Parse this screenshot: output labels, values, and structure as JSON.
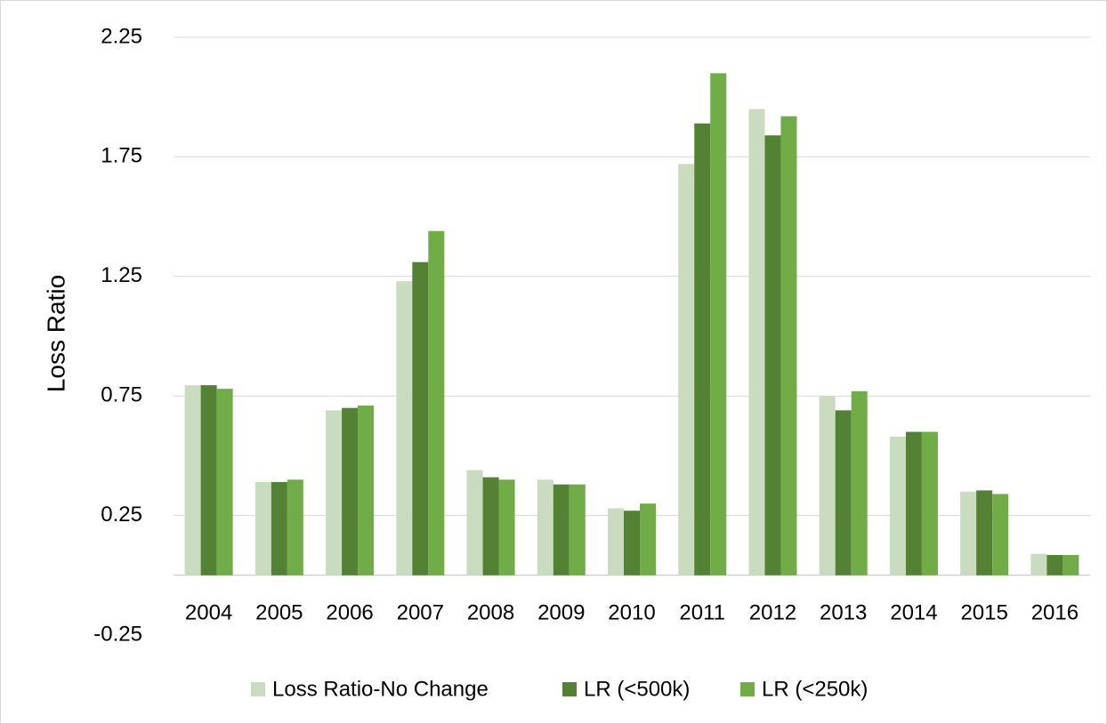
{
  "chart_data": {
    "type": "bar",
    "y_label": "Loss Ratio",
    "categories": [
      "2004",
      "2005",
      "2006",
      "2007",
      "2008",
      "2009",
      "2010",
      "2011",
      "2012",
      "2013",
      "2014",
      "2015",
      "2016"
    ],
    "series": [
      {
        "name": "Loss Ratio-No Change",
        "color": "#c9dcc0",
        "values": [
          0.795,
          0.39,
          0.69,
          1.23,
          0.44,
          0.4,
          0.28,
          1.72,
          1.95,
          0.75,
          0.58,
          0.35,
          0.09
        ]
      },
      {
        "name": "LR (<500k)",
        "color": "#548235",
        "values": [
          0.795,
          0.39,
          0.7,
          1.31,
          0.41,
          0.38,
          0.27,
          1.89,
          1.84,
          0.69,
          0.6,
          0.355,
          0.085
        ]
      },
      {
        "name": "LR (<250k)",
        "color": "#70ad47",
        "values": [
          0.78,
          0.4,
          0.71,
          1.44,
          0.4,
          0.38,
          0.3,
          2.1,
          1.92,
          0.77,
          0.6,
          0.34,
          0.085
        ]
      }
    ],
    "ylim": [
      -0.25,
      2.25
    ],
    "yticks": [
      -0.25,
      0.25,
      0.75,
      1.25,
      1.75,
      2.25
    ],
    "grid": true
  }
}
